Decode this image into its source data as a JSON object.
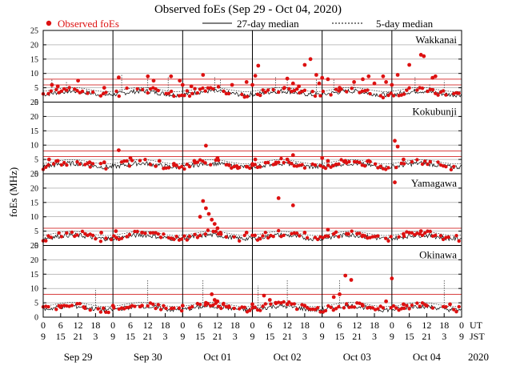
{
  "chart_data": {
    "type": "scatter",
    "title": "Observed foEs (Sep 29 - Oct 04, 2020)",
    "ylabel": "foEs (MHz)",
    "ylim": [
      0,
      25
    ],
    "yticks": [
      0,
      5,
      10,
      15,
      20,
      25
    ],
    "legend": {
      "observed": "Observed foEs",
      "median27": "27-day median",
      "median5": "5-day median",
      "placement": "top"
    },
    "colors": {
      "observed": "#dd1111",
      "redline": "#cc0000",
      "grid": "#999999"
    },
    "x_axis": {
      "unit_ut": "UT",
      "unit_jst": "JST",
      "year": "2020",
      "ut_ticks": [
        "0",
        "6",
        "12",
        "18",
        "0",
        "6",
        "12",
        "18",
        "0",
        "6",
        "12",
        "18",
        "0",
        "6",
        "12",
        "18",
        "0",
        "6",
        "12",
        "18",
        "0",
        "6",
        "12",
        "18",
        "0"
      ],
      "jst_ticks": [
        "9",
        "15",
        "21",
        "3",
        "9",
        "15",
        "21",
        "3",
        "9",
        "15",
        "21",
        "3",
        "9",
        "15",
        "21",
        "3",
        "9",
        "15",
        "21",
        "3",
        "9",
        "15",
        "21",
        "3",
        "9"
      ],
      "day_labels": [
        "Sep 29",
        "Sep 30",
        "Oct 01",
        "Oct 02",
        "Oct 03",
        "Oct 04"
      ],
      "hours_total": 144
    },
    "panels": [
      {
        "station": "Wakkanai",
        "red_lines": [
          6,
          8
        ],
        "base_level": 3.2,
        "observed_points": [
          [
            3,
            6
          ],
          [
            5,
            5.5
          ],
          [
            12,
            7.5
          ],
          [
            21,
            5
          ],
          [
            26,
            8.6
          ],
          [
            36,
            9
          ],
          [
            38,
            7.5
          ],
          [
            44,
            9
          ],
          [
            47,
            7.5
          ],
          [
            48,
            6
          ],
          [
            51,
            5.5
          ],
          [
            55,
            9.5
          ],
          [
            65,
            6
          ],
          [
            70,
            7
          ],
          [
            72,
            6
          ],
          [
            73,
            9.2
          ],
          [
            74,
            12.7
          ],
          [
            83,
            5
          ],
          [
            84,
            8.2
          ],
          [
            86,
            6.5
          ],
          [
            88,
            5.5
          ],
          [
            90,
            13
          ],
          [
            92,
            15
          ],
          [
            94,
            9.5
          ],
          [
            95,
            6.5
          ],
          [
            96,
            8.5
          ],
          [
            98,
            8
          ],
          [
            102,
            5
          ],
          [
            107,
            7
          ],
          [
            110,
            8
          ],
          [
            112,
            9
          ],
          [
            114,
            6.5
          ],
          [
            117,
            9
          ],
          [
            118,
            7
          ],
          [
            120,
            6
          ],
          [
            122,
            9.5
          ],
          [
            126,
            13
          ],
          [
            130,
            16.5
          ],
          [
            131,
            16
          ],
          [
            134,
            8.5
          ],
          [
            135,
            9
          ]
        ],
        "median5_spikes": [
          [
            3,
            8
          ],
          [
            8,
            7
          ],
          [
            27,
            9.5
          ],
          [
            36,
            9.5
          ],
          [
            43,
            9
          ],
          [
            48,
            6.5
          ],
          [
            59,
            9
          ],
          [
            61,
            8
          ],
          [
            80,
            9
          ],
          [
            84,
            8.5
          ],
          [
            94,
            8
          ],
          [
            100,
            8
          ],
          [
            107,
            7
          ],
          [
            128,
            9
          ],
          [
            133,
            6.5
          ],
          [
            138,
            7.5
          ]
        ]
      },
      {
        "station": "Kokubunji",
        "red_lines": [
          6,
          8
        ],
        "base_level": 3.0,
        "observed_points": [
          [
            2,
            5
          ],
          [
            5,
            4.5
          ],
          [
            16,
            4
          ],
          [
            21,
            4
          ],
          [
            26,
            8.2
          ],
          [
            30,
            5.5
          ],
          [
            40,
            4.5
          ],
          [
            45,
            3.5
          ],
          [
            52,
            4.5
          ],
          [
            56,
            9.8
          ],
          [
            60,
            5.5
          ],
          [
            64,
            3
          ],
          [
            67,
            2
          ],
          [
            70,
            2.5
          ],
          [
            72,
            3
          ],
          [
            73,
            5
          ],
          [
            80,
            3.5
          ],
          [
            84,
            5
          ],
          [
            86,
            6.5
          ],
          [
            96,
            5.5
          ],
          [
            98,
            4.5
          ],
          [
            104,
            4.5
          ],
          [
            112,
            4.5
          ],
          [
            121,
            11.5
          ],
          [
            122,
            9.5
          ],
          [
            124,
            5
          ]
        ],
        "median5_spikes": []
      },
      {
        "station": "Yamagawa",
        "red_lines": [
          6
        ],
        "base_level": 3.0,
        "observed_points": [
          [
            20,
            4.5
          ],
          [
            25,
            5
          ],
          [
            34,
            4.5
          ],
          [
            54,
            10
          ],
          [
            55,
            15.5
          ],
          [
            56,
            13
          ],
          [
            57,
            11
          ],
          [
            58,
            9
          ],
          [
            59,
            7.5
          ],
          [
            60,
            6
          ],
          [
            61,
            4.5
          ],
          [
            70,
            4.5
          ],
          [
            81,
            16.5
          ],
          [
            86,
            14
          ],
          [
            90,
            4.5
          ],
          [
            98,
            5.5
          ],
          [
            100,
            4
          ],
          [
            105,
            4
          ],
          [
            110,
            3.5
          ],
          [
            121,
            22
          ],
          [
            124,
            4
          ],
          [
            130,
            5
          ]
        ],
        "median5_spikes": []
      },
      {
        "station": "Okinawa",
        "red_lines": [
          8
        ],
        "base_level": 3.2,
        "observed_points": [
          [
            6,
            3.5
          ],
          [
            14,
            3.5
          ],
          [
            24,
            4
          ],
          [
            34,
            4
          ],
          [
            48,
            4
          ],
          [
            56,
            5
          ],
          [
            58,
            8
          ],
          [
            59,
            6
          ],
          [
            60,
            5.5
          ],
          [
            62,
            4.5
          ],
          [
            64,
            3.5
          ],
          [
            72,
            4.5
          ],
          [
            76,
            7.5
          ],
          [
            78,
            6
          ],
          [
            80,
            5
          ],
          [
            84,
            4.5
          ],
          [
            90,
            4
          ],
          [
            100,
            7
          ],
          [
            102,
            8
          ],
          [
            104,
            14.5
          ],
          [
            106,
            13
          ],
          [
            110,
            4
          ],
          [
            118,
            5.5
          ],
          [
            120,
            13.5
          ],
          [
            124,
            4.5
          ],
          [
            132,
            4
          ],
          [
            140,
            4.5
          ]
        ],
        "median5_spikes": [
          [
            18,
            10
          ],
          [
            36,
            13
          ],
          [
            55,
            13
          ],
          [
            74,
            11
          ],
          [
            84,
            13
          ],
          [
            102,
            13
          ],
          [
            120,
            13
          ],
          [
            138,
            13
          ]
        ]
      }
    ]
  }
}
